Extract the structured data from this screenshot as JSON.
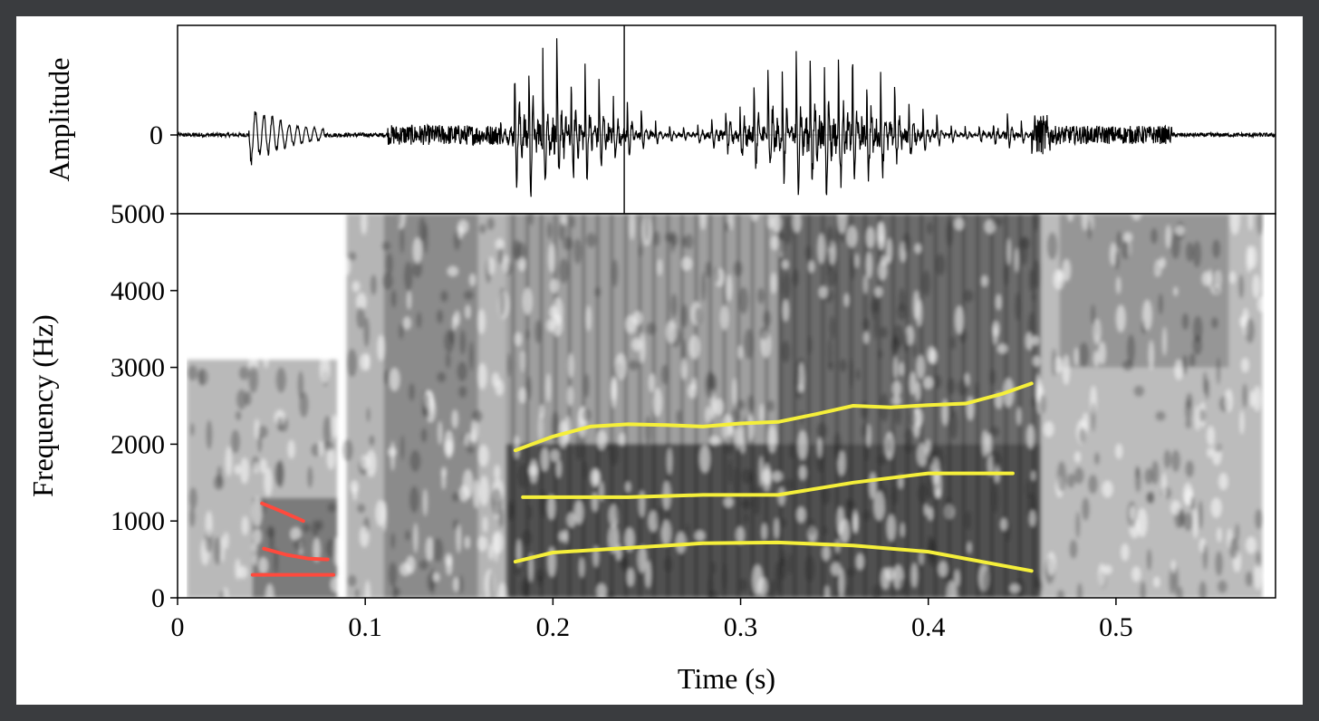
{
  "page": {
    "background": "#3a3c3f",
    "panel_background": "#ffffff"
  },
  "chart_data": [
    {
      "type": "line",
      "panel": "waveform",
      "title": "",
      "ylabel": "Amplitude",
      "xlim": [
        0,
        0.585
      ],
      "ylim": [
        -1,
        1
      ],
      "y_ticks": [
        {
          "value": 0,
          "label": "0"
        }
      ],
      "cursor_time": 0.238,
      "grid": false,
      "envelope_segments": [
        {
          "t0": 0.0,
          "t1": 0.038,
          "amp": 0.02,
          "kind": "noise"
        },
        {
          "t0": 0.038,
          "t1": 0.078,
          "amp": 0.32,
          "kind": "burst"
        },
        {
          "t0": 0.078,
          "t1": 0.112,
          "amp": 0.02,
          "kind": "noise"
        },
        {
          "t0": 0.112,
          "t1": 0.172,
          "amp": 0.1,
          "kind": "noise"
        },
        {
          "t0": 0.172,
          "t1": 0.455,
          "amp": 0.95,
          "kind": "voiced"
        },
        {
          "t0": 0.455,
          "t1": 0.465,
          "amp": 0.2,
          "kind": "decay"
        },
        {
          "t0": 0.465,
          "t1": 0.53,
          "amp": 0.09,
          "kind": "noise"
        },
        {
          "t0": 0.53,
          "t1": 0.585,
          "amp": 0.02,
          "kind": "noise"
        }
      ],
      "line_color": "#000000"
    },
    {
      "type": "heatmap",
      "panel": "spectrogram",
      "title": "",
      "xlabel": "Time (s)",
      "ylabel": "Frequency (Hz)",
      "xlim": [
        0,
        0.585
      ],
      "ylim": [
        0,
        5000
      ],
      "x_ticks": [
        {
          "value": 0,
          "label": "0"
        },
        {
          "value": 0.1,
          "label": "0.1"
        },
        {
          "value": 0.2,
          "label": "0.2"
        },
        {
          "value": 0.3,
          "label": "0.3"
        },
        {
          "value": 0.4,
          "label": "0.4"
        },
        {
          "value": 0.5,
          "label": "0.5"
        }
      ],
      "y_ticks": [
        {
          "value": 0,
          "label": "0"
        },
        {
          "value": 1000,
          "label": "1000"
        },
        {
          "value": 2000,
          "label": "2000"
        },
        {
          "value": 3000,
          "label": "3000"
        },
        {
          "value": 4000,
          "label": "4000"
        },
        {
          "value": 5000,
          "label": "5000"
        }
      ],
      "grid": false,
      "colormap": "grayscale",
      "energy_regions": [
        {
          "t0": 0.005,
          "t1": 0.085,
          "f0": 0,
          "f1": 3100,
          "level": 0.4
        },
        {
          "t0": 0.04,
          "t1": 0.085,
          "f0": 0,
          "f1": 1300,
          "level": 0.65
        },
        {
          "t0": 0.09,
          "t1": 0.175,
          "f0": 0,
          "f1": 5000,
          "level": 0.42
        },
        {
          "t0": 0.11,
          "t1": 0.16,
          "f0": 0,
          "f1": 5000,
          "level": 0.55
        },
        {
          "t0": 0.175,
          "t1": 0.46,
          "f0": 0,
          "f1": 5000,
          "level": 0.55
        },
        {
          "t0": 0.175,
          "t1": 0.46,
          "f0": 0,
          "f1": 2000,
          "level": 0.85
        },
        {
          "t0": 0.32,
          "t1": 0.46,
          "f0": 2000,
          "f1": 5000,
          "level": 0.7
        },
        {
          "t0": 0.46,
          "t1": 0.578,
          "f0": 0,
          "f1": 5000,
          "level": 0.38
        },
        {
          "t0": 0.47,
          "t1": 0.56,
          "f0": 3000,
          "f1": 5000,
          "level": 0.5
        }
      ],
      "voicing_pulse_period": 0.0075,
      "series": [
        {
          "color": "#ff4a3d",
          "x": [
            0.045,
            0.055,
            0.067
          ],
          "y": [
            1230,
            1130,
            1000
          ]
        },
        {
          "color": "#ff4a3d",
          "x": [
            0.046,
            0.058,
            0.07,
            0.08
          ],
          "y": [
            640,
            560,
            510,
            500
          ]
        },
        {
          "color": "#ff4a3d",
          "x": [
            0.04,
            0.083
          ],
          "y": [
            300,
            300
          ]
        },
        {
          "color": "#f5ef3a",
          "x": [
            0.18,
            0.2,
            0.22,
            0.24,
            0.26,
            0.28,
            0.3,
            0.32,
            0.34,
            0.36,
            0.38,
            0.4,
            0.42,
            0.44,
            0.455
          ],
          "y": [
            1920,
            2100,
            2230,
            2260,
            2250,
            2230,
            2270,
            2290,
            2390,
            2500,
            2480,
            2510,
            2530,
            2660,
            2790
          ]
        },
        {
          "color": "#f5ef3a",
          "x": [
            0.184,
            0.2,
            0.24,
            0.28,
            0.32,
            0.36,
            0.4,
            0.445
          ],
          "y": [
            1310,
            1310,
            1310,
            1340,
            1340,
            1500,
            1620,
            1620
          ]
        },
        {
          "color": "#f5ef3a",
          "x": [
            0.18,
            0.2,
            0.24,
            0.28,
            0.32,
            0.36,
            0.4,
            0.455
          ],
          "y": [
            470,
            590,
            650,
            710,
            720,
            680,
            600,
            350
          ]
        }
      ]
    }
  ]
}
